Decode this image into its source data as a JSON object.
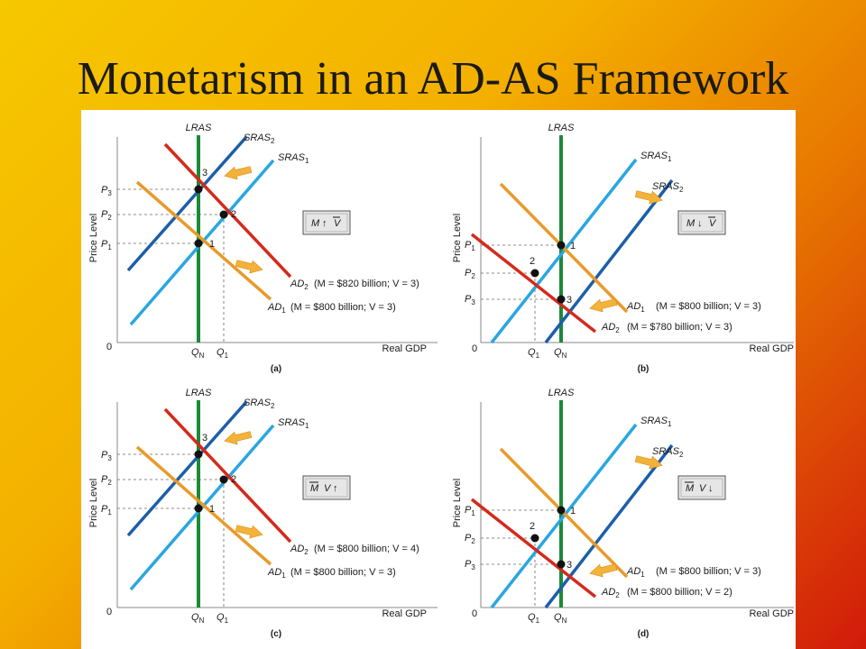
{
  "title": "Monetarism in an AD-AS Framework",
  "colors": {
    "lras": "#1b8a3a",
    "sras1": "#2aa6e0",
    "sras2": "#1d5ea8",
    "ad1": "#e89a2a",
    "ad2": "#d42a1c",
    "arrow": "#f3b23a",
    "guide": "#6a6a6a"
  },
  "panels": [
    {
      "id": "a",
      "caption": "(a)",
      "origin": "0",
      "xaxis": "Real GDP",
      "yaxis": "Price Level",
      "lras": "LRAS",
      "sras": [
        {
          "main": "SRAS",
          "sub": "2"
        },
        {
          "main": "SRAS",
          "sub": "1"
        }
      ],
      "ad": [
        {
          "main": "AD",
          "sub": "2",
          "note": "(M = $820 billion; V = 3)"
        },
        {
          "main": "AD",
          "sub": "1",
          "note": "(M = $800 billion; V = 3)"
        }
      ],
      "prices": [
        {
          "main": "P",
          "sub": "3"
        },
        {
          "main": "P",
          "sub": "2"
        },
        {
          "main": "P",
          "sub": "1"
        }
      ],
      "quantities": [
        {
          "main": "Q",
          "sub": "N"
        },
        {
          "main": "Q",
          "sub": "1"
        }
      ],
      "points": [
        "3",
        "2",
        "1"
      ],
      "box": {
        "m": "M",
        "v": "V",
        "arrow": "↑"
      }
    },
    {
      "id": "b",
      "caption": "(b)",
      "origin": "0",
      "xaxis": "Real GDP",
      "yaxis": "Price Level",
      "lras": "LRAS",
      "sras": [
        {
          "main": "SRAS",
          "sub": "1"
        },
        {
          "main": "SRAS",
          "sub": "2"
        }
      ],
      "ad": [
        {
          "main": "AD",
          "sub": "1",
          "note": "(M = $800 billion; V = 3)"
        },
        {
          "main": "AD",
          "sub": "2",
          "note": "(M = $780 billion; V = 3)"
        }
      ],
      "prices": [
        {
          "main": "P",
          "sub": "1"
        },
        {
          "main": "P",
          "sub": "2"
        },
        {
          "main": "P",
          "sub": "3"
        }
      ],
      "quantities": [
        {
          "main": "Q",
          "sub": "1"
        },
        {
          "main": "Q",
          "sub": "N"
        }
      ],
      "points": [
        "1",
        "2",
        "3"
      ],
      "box": {
        "m": "M",
        "v": "V",
        "arrow": "↓"
      }
    },
    {
      "id": "c",
      "caption": "(c)",
      "origin": "0",
      "xaxis": "Real GDP",
      "yaxis": "Price Level",
      "lras": "LRAS",
      "sras": [
        {
          "main": "SRAS",
          "sub": "2"
        },
        {
          "main": "SRAS",
          "sub": "1"
        }
      ],
      "ad": [
        {
          "main": "AD",
          "sub": "2",
          "note": "(M = $800 billion; V = 4)"
        },
        {
          "main": "AD",
          "sub": "1",
          "note": "(M = $800 billion; V = 3)"
        }
      ],
      "prices": [
        {
          "main": "P",
          "sub": "3"
        },
        {
          "main": "P",
          "sub": "2"
        },
        {
          "main": "P",
          "sub": "1"
        }
      ],
      "quantities": [
        {
          "main": "Q",
          "sub": "N"
        },
        {
          "main": "Q",
          "sub": "1"
        }
      ],
      "points": [
        "3",
        "2",
        "1"
      ],
      "box": {
        "m": "M",
        "v": "V",
        "arrow": "↑"
      }
    },
    {
      "id": "d",
      "caption": "(d)",
      "origin": "0",
      "xaxis": "Real GDP",
      "yaxis": "Price Level",
      "lras": "LRAS",
      "sras": [
        {
          "main": "SRAS",
          "sub": "1"
        },
        {
          "main": "SRAS",
          "sub": "2"
        }
      ],
      "ad": [
        {
          "main": "AD",
          "sub": "1",
          "note": "(M = $800 billion; V = 3)"
        },
        {
          "main": "AD",
          "sub": "2",
          "note": "(M = $800 billion; V = 2)"
        }
      ],
      "prices": [
        {
          "main": "P",
          "sub": "1"
        },
        {
          "main": "P",
          "sub": "2"
        },
        {
          "main": "P",
          "sub": "3"
        }
      ],
      "quantities": [
        {
          "main": "Q",
          "sub": "1"
        },
        {
          "main": "Q",
          "sub": "N"
        }
      ],
      "points": [
        "1",
        "2",
        "3"
      ],
      "box": {
        "m": "M",
        "v": "V",
        "arrow": "↓"
      }
    }
  ]
}
